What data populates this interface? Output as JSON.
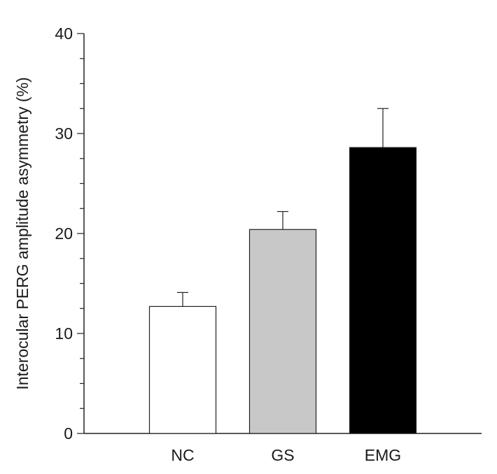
{
  "chart_data": {
    "type": "bar",
    "title": "",
    "xlabel": "",
    "ylabel": "Interocular PERG amplitude asymmetry (%)",
    "ylim": [
      0,
      40
    ],
    "yticks": [
      0,
      10,
      20,
      30,
      40
    ],
    "minor_tick_step": 2.5,
    "grid": false,
    "categories": [
      "NC",
      "GS",
      "EMG"
    ],
    "values": [
      12.7,
      20.4,
      28.6
    ],
    "errors": [
      1.4,
      1.8,
      3.9
    ],
    "colors": [
      "#ffffff",
      "#c8c8c8",
      "#000000"
    ]
  }
}
